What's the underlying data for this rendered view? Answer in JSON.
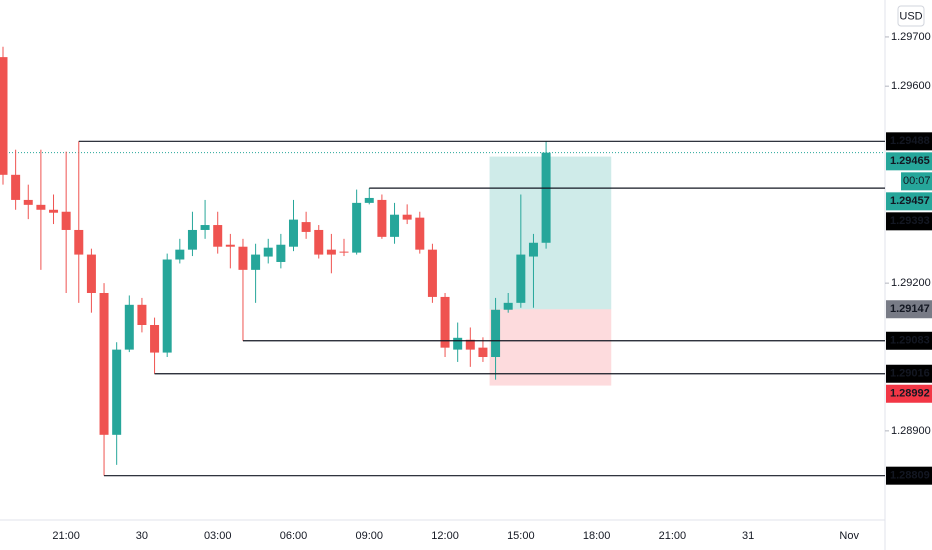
{
  "chart_data": {
    "type": "candlestick",
    "currency": "USD",
    "categories": [
      null,
      null,
      null,
      null,
      null,
      "21:00",
      null,
      null,
      null,
      null,
      null,
      "30",
      null,
      null,
      null,
      null,
      null,
      "03:00",
      null,
      null,
      null,
      null,
      null,
      "06:00",
      null,
      null,
      null,
      null,
      null,
      "09:00",
      null,
      null,
      null,
      null,
      null,
      "12:00",
      null,
      null,
      null,
      null,
      null,
      "15:00",
      null,
      null,
      null,
      null,
      null,
      "18:00",
      null,
      null,
      null,
      null,
      null,
      "21:00",
      null,
      null,
      null,
      null,
      null,
      "31",
      null,
      null,
      null,
      null,
      null,
      null,
      null,
      "Nov",
      null,
      null
    ],
    "open": [
      1.29659,
      1.2942,
      1.29369,
      1.29359,
      1.29349,
      1.29345,
      1.29308,
      1.29258,
      1.2918,
      1.28892,
      1.29065,
      1.29156,
      1.29115,
      1.29059,
      1.29248,
      1.29268,
      1.29308,
      1.29318,
      1.29278,
      1.29274,
      1.29227,
      1.29254,
      1.29243,
      1.29274,
      1.29324,
      1.29308,
      1.29268,
      1.29264,
      1.29262,
      1.29363,
      1.29369,
      1.29294,
      1.29339,
      1.29333,
      1.29268,
      1.29172,
      1.29065,
      1.29085,
      1.29069,
      1.2905,
      1.29146,
      1.2916,
      1.29254,
      1.29282,
      null,
      null,
      null,
      null,
      null,
      null,
      null,
      null,
      null,
      null,
      null,
      null,
      null,
      null,
      null,
      null,
      null,
      null,
      null,
      null,
      null,
      null,
      null,
      null,
      null,
      null
    ],
    "high": [
      1.2968,
      1.29471,
      1.294,
      1.29471,
      1.2938,
      1.29467,
      1.29488,
      1.2927,
      1.292,
      1.2908,
      1.29175,
      1.2917,
      1.2913,
      1.2926,
      1.2929,
      1.29345,
      1.29369,
      1.29345,
      1.293,
      1.2929,
      1.2928,
      1.2929,
      1.293,
      1.29369,
      1.29345,
      1.29318,
      1.293,
      1.2929,
      1.2939,
      1.29393,
      1.2938,
      1.29363,
      1.2936,
      1.29345,
      1.2928,
      1.2918,
      1.2912,
      1.2911,
      1.2909,
      1.2917,
      1.2918,
      1.2938,
      1.293,
      1.29488,
      null,
      null,
      null,
      null,
      null,
      null,
      null,
      null,
      null,
      null,
      null,
      null,
      null,
      null,
      null,
      null,
      null,
      null,
      null,
      null,
      null,
      null,
      null,
      null,
      null,
      null
    ],
    "low": [
      1.294,
      1.29349,
      1.2933,
      1.29227,
      1.2932,
      1.2918,
      1.2916,
      1.2914,
      1.28809,
      1.28831,
      1.2906,
      1.291,
      1.29016,
      1.2905,
      1.2924,
      1.29255,
      1.2929,
      1.2926,
      1.2923,
      1.29083,
      1.2916,
      1.2924,
      1.2923,
      1.29265,
      1.2929,
      1.2925,
      1.2922,
      1.29255,
      1.29258,
      1.2936,
      1.2929,
      1.2928,
      1.2932,
      1.2926,
      1.2916,
      1.2905,
      1.2904,
      1.2903,
      1.2904,
      1.29004,
      1.2914,
      1.2915,
      1.2915,
      1.2927,
      null,
      null,
      null,
      null,
      null,
      null,
      null,
      null,
      null,
      null,
      null,
      null,
      null,
      null,
      null,
      null,
      null,
      null,
      null,
      null,
      null,
      null,
      null,
      null,
      null,
      null
    ],
    "close": [
      1.2942,
      1.29369,
      1.29359,
      1.29349,
      1.29343,
      1.29308,
      1.29258,
      1.2918,
      1.28892,
      1.29065,
      1.29156,
      1.29115,
      1.29059,
      1.29248,
      1.29268,
      1.29308,
      1.29318,
      1.29274,
      1.29274,
      1.29227,
      1.29258,
      1.29272,
      1.29278,
      1.29329,
      1.29304,
      1.29258,
      1.29258,
      1.29262,
      1.29363,
      1.29373,
      1.29294,
      1.29339,
      1.29329,
      1.29268,
      1.29172,
      1.29069,
      1.29089,
      1.29065,
      1.2905,
      1.29146,
      1.2916,
      1.29258,
      1.29282,
      1.29465,
      null,
      null,
      null,
      null,
      null,
      null,
      null,
      null,
      null,
      null,
      null,
      null,
      null,
      null,
      null,
      null,
      null,
      null,
      null,
      null,
      null,
      null,
      null,
      null,
      null,
      null
    ],
    "up_color": "#26a69a",
    "down_color": "#ef5350",
    "ylim": [
      1.28719,
      1.29775
    ],
    "yticks": [
      {
        "value": 1.297,
        "label": "1.29700"
      },
      {
        "value": 1.296,
        "label": "1.29600"
      },
      {
        "value": 1.292,
        "label": "1.29200"
      },
      {
        "value": 1.289,
        "label": "1.28900"
      }
    ],
    "levels": [
      1.29488,
      1.29393,
      1.29083,
      1.29016,
      1.28809
    ],
    "last_price": 1.29465,
    "countdown": "00:07",
    "position": {
      "target": 1.29457,
      "entry": 1.29147,
      "stop": 1.28992
    }
  }
}
